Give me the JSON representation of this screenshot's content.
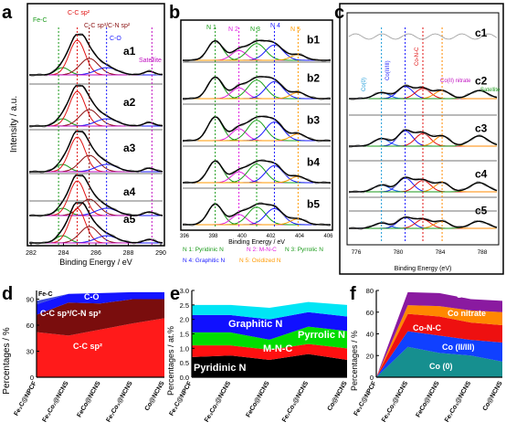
{
  "panels": {
    "a": {
      "letter": "a",
      "xlabel": "Binding Energy / eV",
      "ylabel": "Intensity / a.u.",
      "peaks": [
        "Fe-C",
        "C-C sp²",
        "C-C sp³/C-N sp²",
        "C-O",
        "Satellite"
      ],
      "traces": [
        "a1",
        "a2",
        "a3",
        "a4",
        "a5"
      ],
      "xticks": [
        "282",
        "284",
        "286",
        "288",
        "290"
      ]
    },
    "b": {
      "letter": "b",
      "xlabel": "Binding Energy / eV",
      "peaks": [
        "N 1",
        "N 2",
        "N 3",
        "N 4",
        "N 5"
      ],
      "traces": [
        "b1",
        "b2",
        "b3",
        "b4",
        "b5"
      ],
      "xticks": [
        "396",
        "398",
        "400",
        "402",
        "404",
        "406"
      ],
      "legend": [
        "N 1: Pyridinic N",
        "N 2: M-N-C",
        "N 3: Pyrrolic N",
        "N 4: Graphitic N",
        "N 5: Oxidized N"
      ]
    },
    "c": {
      "letter": "c",
      "xlabel": "Binding Energy (eV)",
      "peaks": [
        "Co(0)",
        "Co(II/III)",
        "Co-N-C",
        "Co(II) nitrate",
        "Satellite"
      ],
      "traces": [
        "c1",
        "c2",
        "c3",
        "c4",
        "c5"
      ],
      "xticks": [
        "776",
        "780",
        "784",
        "788"
      ]
    },
    "d": {
      "letter": "d",
      "ylabel": "Percentages / %",
      "categories": [
        "Fe₃C@NPCF",
        "Fe₃Co₇@NCNS",
        "FeCo@NCNS",
        "Fe₇Co₃@NCNS",
        "Co@NCNS"
      ],
      "labels": [
        "Fe-C",
        "C-O",
        "C-C sp³/C-N sp²",
        "C-C sp²"
      ],
      "yticks": [
        "0",
        "30",
        "60",
        "90"
      ]
    },
    "e": {
      "letter": "e",
      "ylabel": "Percentages / at.%",
      "categories": [
        "Fe₃C@NPCF",
        "Fe₃Co₇@NCNS",
        "FeCo@NCNS",
        "Fe₇Co₃@NCNS",
        "Co@NCNS"
      ],
      "labels": [
        "Oxidized N",
        "Graphitic N",
        "Pyrrolic N",
        "M-N-C",
        "Pyridinic N"
      ],
      "yticks": [
        "0.0",
        "0.5",
        "1.0",
        "1.5",
        "2.0",
        "2.5",
        "3.0"
      ]
    },
    "f": {
      "letter": "f",
      "ylabel": "Percentages / %",
      "categories": [
        "Fe₃C@NPCF",
        "Fe₃Co₇@NCNS",
        "FeCo@NCNS",
        "Fe₇Co₃@NCNS",
        "Co@NCNS"
      ],
      "labels": [
        "Satellite",
        "Co nitrate",
        "Co-N-C",
        "Co (II/III)",
        "Co (0)"
      ],
      "yticks": [
        "0",
        "20",
        "40",
        "60",
        "80"
      ]
    }
  },
  "colors": {
    "d": {
      "fec": "#3b4bd8",
      "co": "#1414ff",
      "sp3": "#7a0d0d",
      "sp2": "#ff1a1a"
    },
    "e": {
      "pyridinic": "#000000",
      "mnc": "#ff1010",
      "pyrrolic": "#00dd00",
      "graphitic": "#1010ff",
      "oxidized": "#00e5f5"
    },
    "f": {
      "co0": "#168f8f",
      "co23": "#1040ff",
      "conc": "#ee1010",
      "nitrate": "#ff8800",
      "sat": "#8a1aa0"
    }
  },
  "chart_data": [
    {
      "type": "area",
      "panel": "d",
      "categories": [
        "Fe₃C@NPCF",
        "Fe₃Co₇@NCNS",
        "FeCo@NCNS",
        "Fe₇Co₃@NCNS",
        "Co@NCNS"
      ],
      "ylim": [
        0,
        100
      ],
      "series": [
        {
          "name": "C-C sp²",
          "values": [
            52,
            48,
            55,
            62,
            68
          ]
        },
        {
          "name": "C-C sp³/C-N sp²",
          "values": [
            20,
            38,
            30,
            28,
            22
          ]
        },
        {
          "name": "C-O",
          "values": [
            12,
            10,
            12,
            8,
            8
          ]
        },
        {
          "name": "Fe-C",
          "values": [
            4,
            0,
            0,
            0,
            0
          ]
        }
      ]
    },
    {
      "type": "area",
      "panel": "e",
      "categories": [
        "Fe₃C@NPCF",
        "Fe₃Co₇@NCNS",
        "FeCo@NCNS",
        "Fe₇Co₃@NCNS",
        "Co@NCNS"
      ],
      "ylim": [
        0,
        3.0
      ],
      "series": [
        {
          "name": "Pyridinic N",
          "values": [
            0.7,
            0.75,
            0.6,
            0.8,
            0.6
          ]
        },
        {
          "name": "M-N-C",
          "values": [
            0.4,
            0.35,
            0.35,
            0.35,
            0.4
          ]
        },
        {
          "name": "Pyrrolic N",
          "values": [
            0.45,
            0.45,
            0.35,
            0.6,
            0.6
          ]
        },
        {
          "name": "Graphitic N",
          "values": [
            0.6,
            0.6,
            0.7,
            0.5,
            0.5
          ]
        },
        {
          "name": "Oxidized N",
          "values": [
            0.35,
            0.35,
            0.4,
            0.35,
            0.4
          ]
        }
      ]
    },
    {
      "type": "area",
      "panel": "f",
      "categories": [
        "Fe₃C@NPCF",
        "Fe₃Co₇@NCNS",
        "FeCo@NCNS",
        "Fe₇Co₃@NCNS",
        "Co@NCNS"
      ],
      "ylim": [
        0,
        100
      ],
      "series": [
        {
          "name": "Co (0)",
          "values": [
            0,
            35,
            28,
            25,
            18
          ]
        },
        {
          "name": "Co (II/III)",
          "values": [
            0,
            18,
            20,
            18,
            22
          ]
        },
        {
          "name": "Co-N-C",
          "values": [
            0,
            20,
            22,
            20,
            20
          ]
        },
        {
          "name": "Co nitrate",
          "values": [
            0,
            10,
            12,
            14,
            15
          ]
        },
        {
          "name": "Satellite",
          "values": [
            0,
            15,
            15,
            13,
            13
          ]
        }
      ]
    }
  ]
}
